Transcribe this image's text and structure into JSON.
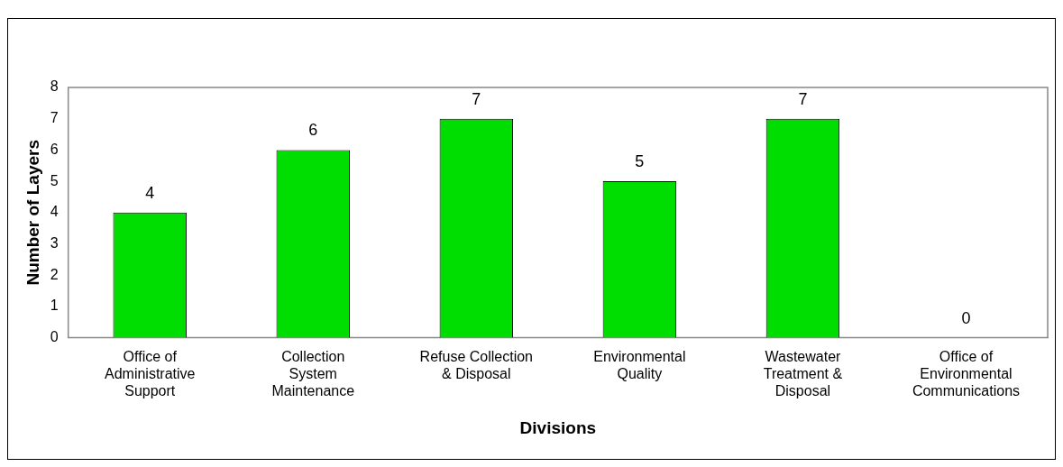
{
  "chart_data": {
    "type": "bar",
    "xlabel": "Divisions",
    "ylabel": "Number of Layers",
    "categories": [
      "Office of\nAdministrative\nSupport",
      "Collection\nSystem\nMaintenance",
      "Refuse Collection\n& Disposal",
      "Environmental\nQuality",
      "Wastewater\nTreatment &\nDisposal",
      "Office of\nEnvironmental\nCommunications"
    ],
    "values": [
      4,
      6,
      7,
      5,
      7,
      0
    ],
    "color": "#00dd00",
    "ylim": [
      0,
      8
    ],
    "yticks": [
      0,
      1,
      2,
      3,
      4,
      5,
      6,
      7,
      8
    ],
    "grid": false,
    "legend": false,
    "data_labels": true
  }
}
